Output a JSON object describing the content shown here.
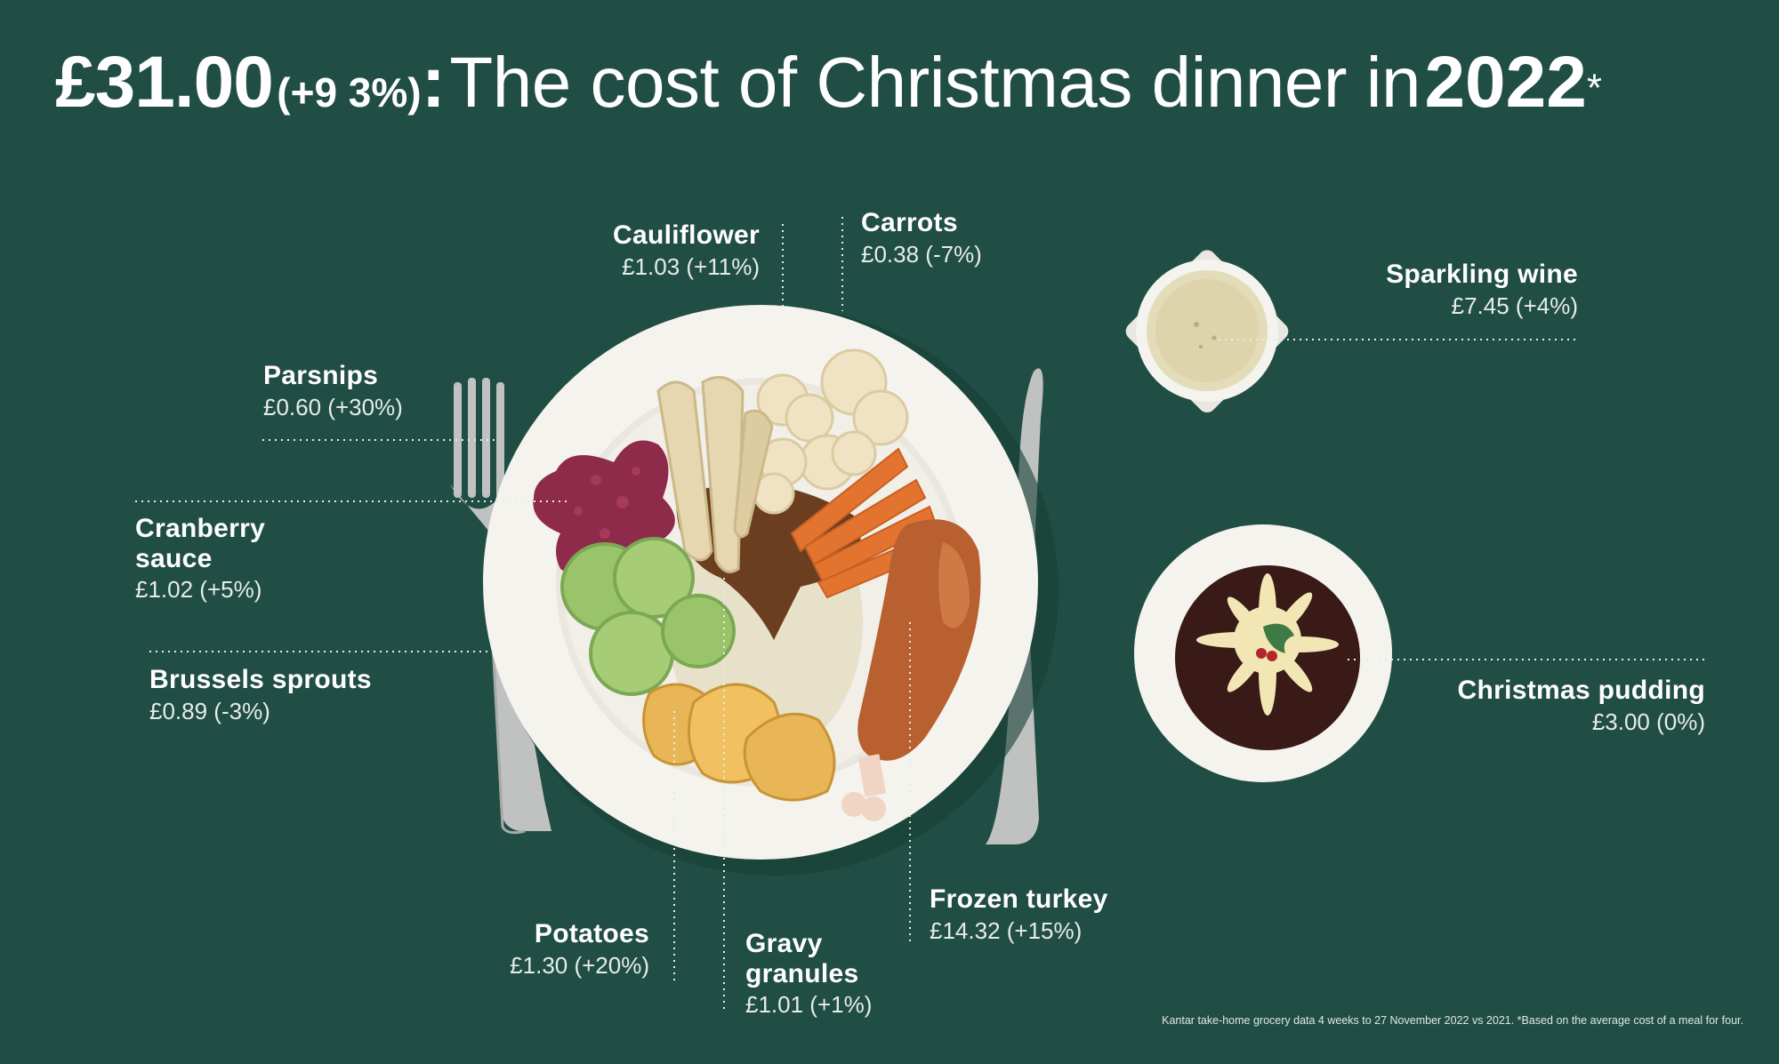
{
  "title": {
    "price": "£31.00",
    "change": "(+9 3%)",
    "colon": ":",
    "text": "The cost of Christmas dinner in",
    "year": "2022",
    "asterisk": "*"
  },
  "items": {
    "cauliflower": {
      "name": "Cauliflower",
      "price": "£1.03 (+11%)"
    },
    "carrots": {
      "name": "Carrots",
      "price": "£0.38 (-7%)"
    },
    "sparkling_wine": {
      "name": "Sparkling wine",
      "price": "£7.45 (+4%)"
    },
    "parsnips": {
      "name": "Parsnips",
      "price": "£0.60 (+30%)"
    },
    "cranberry_sauce": {
      "name_line1": "Cranberry",
      "name_line2": "sauce",
      "price": "£1.02 (+5%)"
    },
    "brussels_sprouts": {
      "name": "Brussels sprouts",
      "price": "£0.89 (-3%)"
    },
    "christmas_pudding": {
      "name": "Christmas pudding",
      "price": "£3.00 (0%)"
    },
    "frozen_turkey": {
      "name": "Frozen turkey",
      "price": "£14.32 (+15%)"
    },
    "potatoes": {
      "name": "Potatoes",
      "price": "£1.30 (+20%)"
    },
    "gravy_granules": {
      "name_line1": "Gravy",
      "name_line2": "granules",
      "price": "£1.01 (+1%)"
    }
  },
  "footnote": "Kantar take-home grocery data 4 weeks to 27 November 2022 vs 2021. *Based on the average cost of a meal for four.",
  "colors": {
    "background": "#214e44",
    "text": "#ffffff",
    "plate": "#f4f3ee",
    "cutlery": "#bfc2c0",
    "turkey": "#b8602f",
    "carrot": "#e2742f",
    "parsnip": "#e6d7b0",
    "cranberry": "#8e2a4a",
    "sprout": "#9ac46a",
    "potato": "#e8b656",
    "gravy": "#6b3e1f",
    "pudding": "#3a1a17",
    "wine": "#e3dcb8"
  },
  "icons": [
    "fork-icon",
    "knife-icon",
    "plate-icon",
    "wine-glass-icon",
    "pudding-bowl-icon"
  ]
}
